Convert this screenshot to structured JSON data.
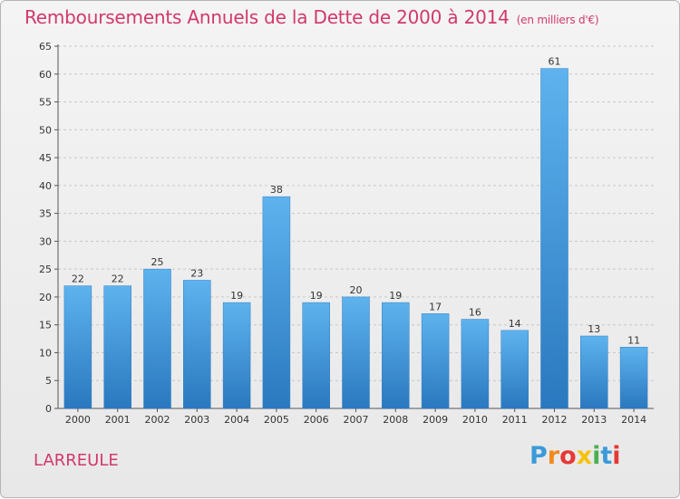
{
  "title": "Remboursements Annuels de la Dette de 2000 à 2014",
  "subtitle": "(en milliers d'€)",
  "commune": "LARREULE",
  "brand": {
    "letters": [
      "P",
      "r",
      "o",
      "x",
      "i",
      "t",
      "i"
    ],
    "colors": [
      "#3a9ad9",
      "#f08a1c",
      "#e53935",
      "#f4c20d",
      "#4caf50",
      "#3a9ad9",
      "#e53935"
    ]
  },
  "colors": {
    "title": "#d1396a",
    "bar_top": "#5eb3ee",
    "bar_bottom": "#2a78bf",
    "grid": "#c8c8c8"
  },
  "chart_data": {
    "type": "bar",
    "title": "Remboursements Annuels de la Dette de 2000 à 2014",
    "xlabel": "",
    "ylabel": "",
    "categories": [
      "2000",
      "2001",
      "2002",
      "2003",
      "2004",
      "2005",
      "2006",
      "2007",
      "2008",
      "2009",
      "2010",
      "2011",
      "2012",
      "2013",
      "2014"
    ],
    "values": [
      22,
      22,
      25,
      23,
      19,
      38,
      19,
      20,
      19,
      17,
      16,
      14,
      61,
      13,
      11
    ],
    "ylim": [
      0,
      65
    ],
    "yticks": [
      0,
      5,
      10,
      15,
      20,
      25,
      30,
      35,
      40,
      45,
      50,
      55,
      60,
      65
    ],
    "grid": true
  }
}
